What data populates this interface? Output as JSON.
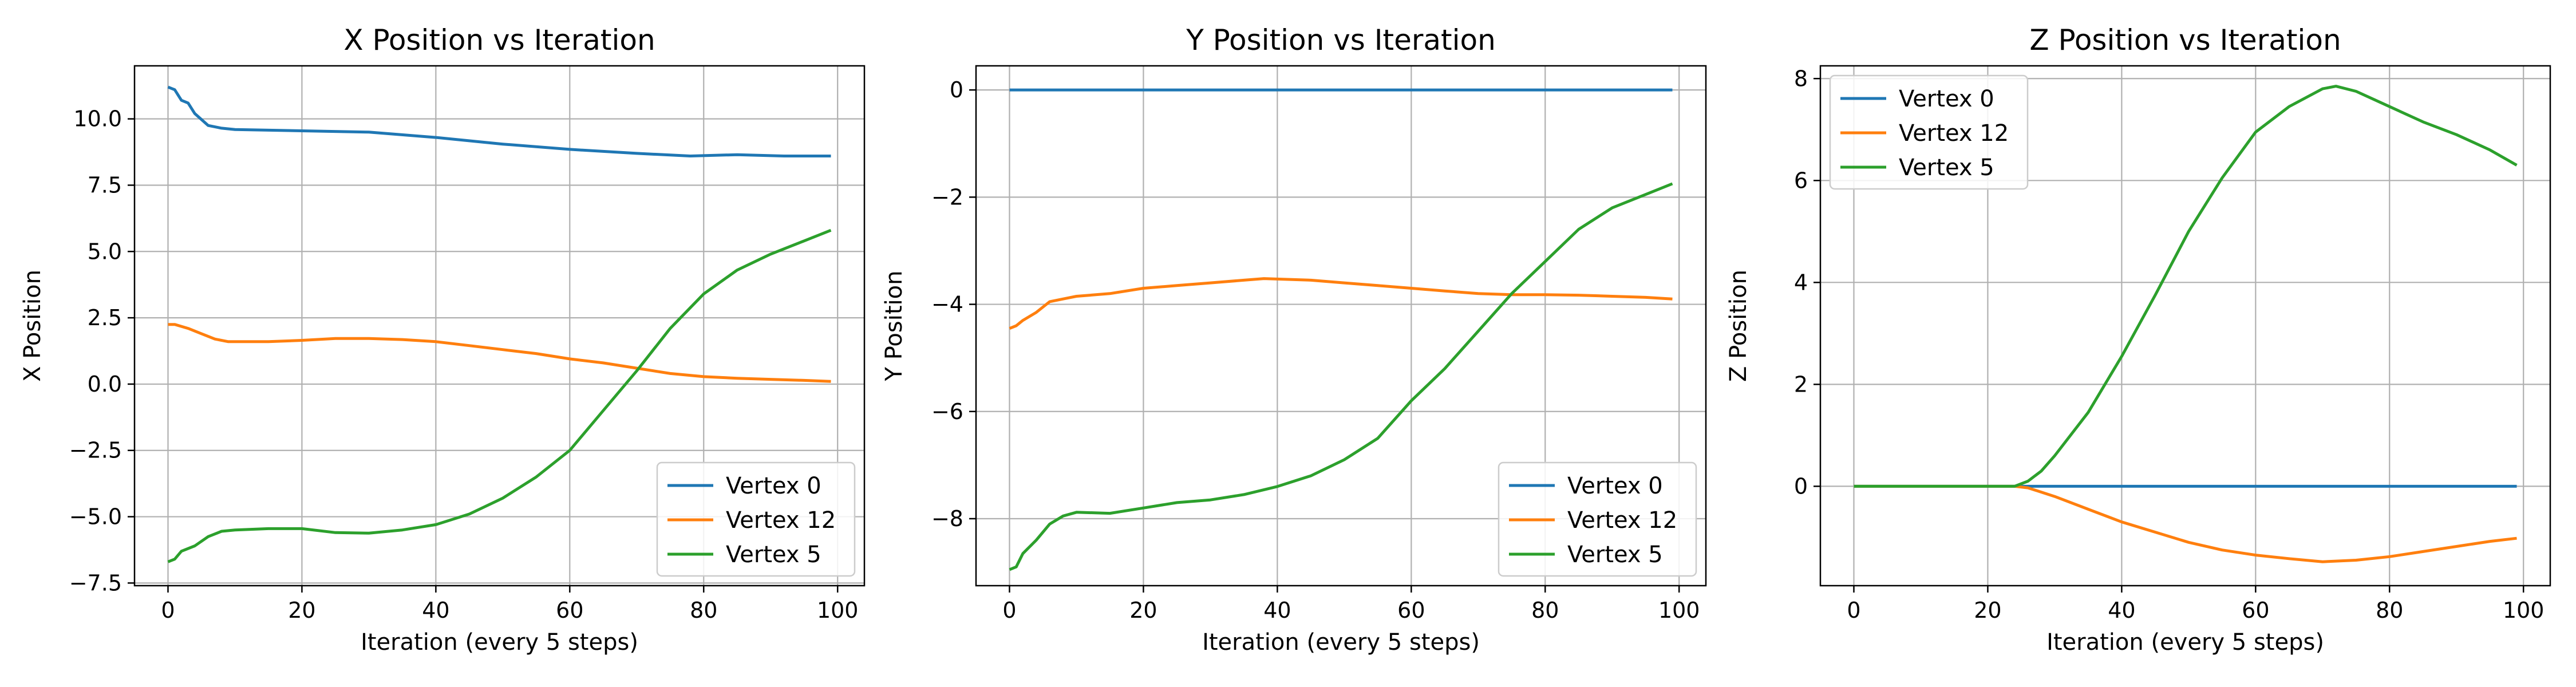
{
  "colors": {
    "vertex_0": "#1f77b4",
    "vertex_12": "#ff7f0e",
    "vertex_5": "#2ca02c",
    "grid": "#b0b0b0"
  },
  "chart_data": [
    {
      "type": "line",
      "title": "X Position vs Iteration",
      "xlabel": "Iteration (every 5 steps)",
      "ylabel": "X Position",
      "xlim": [
        -5,
        104
      ],
      "ylim": [
        -7.6,
        12
      ],
      "xticks": [
        0,
        20,
        40,
        60,
        80,
        100
      ],
      "yticks": [
        -7.5,
        -5.0,
        -2.5,
        0.0,
        2.5,
        5.0,
        7.5,
        10.0
      ],
      "ytick_labels": [
        "−7.5",
        "−5.0",
        "−2.5",
        "0.0",
        "2.5",
        "5.0",
        "7.5",
        "10.0"
      ],
      "grid": true,
      "legend_position": "lower-right",
      "series": [
        {
          "name": "Vertex 0",
          "color": "#1f77b4",
          "points": [
            [
              0,
              11.2
            ],
            [
              1,
              11.1
            ],
            [
              2,
              10.7
            ],
            [
              3,
              10.6
            ],
            [
              4,
              10.2
            ],
            [
              6,
              9.75
            ],
            [
              8,
              9.65
            ],
            [
              10,
              9.6
            ],
            [
              20,
              9.55
            ],
            [
              30,
              9.5
            ],
            [
              40,
              9.3
            ],
            [
              50,
              9.05
            ],
            [
              60,
              8.85
            ],
            [
              70,
              8.7
            ],
            [
              78,
              8.6
            ],
            [
              85,
              8.65
            ],
            [
              92,
              8.6
            ],
            [
              99,
              8.6
            ]
          ]
        },
        {
          "name": "Vertex 12",
          "color": "#ff7f0e",
          "points": [
            [
              0,
              2.25
            ],
            [
              1,
              2.25
            ],
            [
              3,
              2.1
            ],
            [
              5,
              1.9
            ],
            [
              7,
              1.7
            ],
            [
              9,
              1.6
            ],
            [
              15,
              1.6
            ],
            [
              20,
              1.65
            ],
            [
              25,
              1.72
            ],
            [
              30,
              1.72
            ],
            [
              35,
              1.68
            ],
            [
              40,
              1.6
            ],
            [
              45,
              1.45
            ],
            [
              50,
              1.3
            ],
            [
              55,
              1.15
            ],
            [
              60,
              0.95
            ],
            [
              65,
              0.8
            ],
            [
              70,
              0.6
            ],
            [
              75,
              0.4
            ],
            [
              80,
              0.28
            ],
            [
              85,
              0.22
            ],
            [
              90,
              0.18
            ],
            [
              95,
              0.14
            ],
            [
              99,
              0.1
            ]
          ]
        },
        {
          "name": "Vertex 5",
          "color": "#2ca02c",
          "points": [
            [
              0,
              -6.7
            ],
            [
              1,
              -6.6
            ],
            [
              2,
              -6.3
            ],
            [
              4,
              -6.1
            ],
            [
              6,
              -5.75
            ],
            [
              8,
              -5.55
            ],
            [
              10,
              -5.5
            ],
            [
              15,
              -5.45
            ],
            [
              20,
              -5.45
            ],
            [
              25,
              -5.6
            ],
            [
              30,
              -5.62
            ],
            [
              35,
              -5.5
            ],
            [
              40,
              -5.3
            ],
            [
              45,
              -4.9
            ],
            [
              50,
              -4.3
            ],
            [
              55,
              -3.5
            ],
            [
              60,
              -2.5
            ],
            [
              65,
              -1.0
            ],
            [
              70,
              0.5
            ],
            [
              75,
              2.1
            ],
            [
              80,
              3.4
            ],
            [
              85,
              4.3
            ],
            [
              90,
              4.9
            ],
            [
              95,
              5.4
            ],
            [
              99,
              5.8
            ]
          ]
        }
      ]
    },
    {
      "type": "line",
      "title": "Y Position vs Iteration",
      "xlabel": "Iteration (every 5 steps)",
      "ylabel": "Y Position",
      "xlim": [
        -5,
        104
      ],
      "ylim": [
        -9.25,
        0.45
      ],
      "xticks": [
        0,
        20,
        40,
        60,
        80,
        100
      ],
      "yticks": [
        -8,
        -6,
        -4,
        -2,
        0
      ],
      "ytick_labels": [
        "−8",
        "−6",
        "−4",
        "−2",
        "0"
      ],
      "grid": true,
      "legend_position": "lower-right",
      "series": [
        {
          "name": "Vertex 0",
          "color": "#1f77b4",
          "points": [
            [
              0,
              0
            ],
            [
              99,
              0
            ]
          ]
        },
        {
          "name": "Vertex 12",
          "color": "#ff7f0e",
          "points": [
            [
              0,
              -4.45
            ],
            [
              1,
              -4.4
            ],
            [
              2,
              -4.3
            ],
            [
              4,
              -4.15
            ],
            [
              6,
              -3.95
            ],
            [
              8,
              -3.9
            ],
            [
              10,
              -3.85
            ],
            [
              15,
              -3.8
            ],
            [
              20,
              -3.7
            ],
            [
              25,
              -3.65
            ],
            [
              30,
              -3.6
            ],
            [
              35,
              -3.55
            ],
            [
              38,
              -3.52
            ],
            [
              45,
              -3.55
            ],
            [
              50,
              -3.6
            ],
            [
              55,
              -3.65
            ],
            [
              60,
              -3.7
            ],
            [
              65,
              -3.75
            ],
            [
              70,
              -3.8
            ],
            [
              75,
              -3.82
            ],
            [
              80,
              -3.82
            ],
            [
              85,
              -3.83
            ],
            [
              90,
              -3.85
            ],
            [
              95,
              -3.87
            ],
            [
              99,
              -3.9
            ]
          ]
        },
        {
          "name": "Vertex 5",
          "color": "#2ca02c",
          "points": [
            [
              0,
              -8.95
            ],
            [
              1,
              -8.9
            ],
            [
              2,
              -8.65
            ],
            [
              4,
              -8.4
            ],
            [
              6,
              -8.1
            ],
            [
              8,
              -7.95
            ],
            [
              10,
              -7.88
            ],
            [
              15,
              -7.9
            ],
            [
              20,
              -7.8
            ],
            [
              25,
              -7.7
            ],
            [
              30,
              -7.65
            ],
            [
              35,
              -7.55
            ],
            [
              40,
              -7.4
            ],
            [
              45,
              -7.2
            ],
            [
              50,
              -6.9
            ],
            [
              55,
              -6.5
            ],
            [
              60,
              -5.8
            ],
            [
              65,
              -5.2
            ],
            [
              70,
              -4.5
            ],
            [
              75,
              -3.8
            ],
            [
              80,
              -3.2
            ],
            [
              85,
              -2.6
            ],
            [
              90,
              -2.2
            ],
            [
              95,
              -1.95
            ],
            [
              99,
              -1.75
            ]
          ]
        }
      ]
    },
    {
      "type": "line",
      "title": "Z Position vs Iteration",
      "xlabel": "Iteration (every 5 steps)",
      "ylabel": "Z Position",
      "xlim": [
        -5,
        104
      ],
      "ylim": [
        -1.95,
        8.25
      ],
      "xticks": [
        0,
        20,
        40,
        60,
        80,
        100
      ],
      "yticks": [
        0,
        2,
        4,
        6,
        8
      ],
      "ytick_labels": [
        "0",
        "2",
        "4",
        "6",
        "8"
      ],
      "grid": true,
      "legend_position": "upper-left",
      "series": [
        {
          "name": "Vertex 0",
          "color": "#1f77b4",
          "points": [
            [
              0,
              0
            ],
            [
              99,
              0
            ]
          ]
        },
        {
          "name": "Vertex 12",
          "color": "#ff7f0e",
          "points": [
            [
              0,
              0
            ],
            [
              24,
              0
            ],
            [
              26,
              -0.03
            ],
            [
              30,
              -0.2
            ],
            [
              35,
              -0.45
            ],
            [
              40,
              -0.7
            ],
            [
              45,
              -0.9
            ],
            [
              50,
              -1.1
            ],
            [
              55,
              -1.25
            ],
            [
              60,
              -1.35
            ],
            [
              65,
              -1.42
            ],
            [
              70,
              -1.48
            ],
            [
              75,
              -1.45
            ],
            [
              80,
              -1.38
            ],
            [
              85,
              -1.28
            ],
            [
              90,
              -1.18
            ],
            [
              95,
              -1.08
            ],
            [
              99,
              -1.02
            ]
          ]
        },
        {
          "name": "Vertex 5",
          "color": "#2ca02c",
          "points": [
            [
              0,
              0
            ],
            [
              24,
              0
            ],
            [
              26,
              0.1
            ],
            [
              28,
              0.3
            ],
            [
              30,
              0.6
            ],
            [
              35,
              1.45
            ],
            [
              40,
              2.55
            ],
            [
              45,
              3.75
            ],
            [
              50,
              5.0
            ],
            [
              55,
              6.05
            ],
            [
              60,
              6.95
            ],
            [
              65,
              7.45
            ],
            [
              70,
              7.8
            ],
            [
              72,
              7.85
            ],
            [
              75,
              7.75
            ],
            [
              80,
              7.45
            ],
            [
              85,
              7.15
            ],
            [
              90,
              6.9
            ],
            [
              95,
              6.6
            ],
            [
              99,
              6.3
            ]
          ]
        }
      ]
    }
  ]
}
